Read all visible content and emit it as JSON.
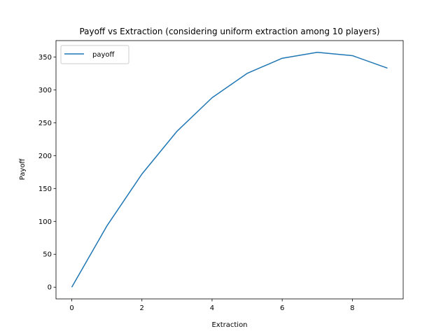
{
  "chart_data": {
    "type": "line",
    "title": "Payoff vs Extraction (considering uniform extraction among 10 players)",
    "xlabel": "Extraction",
    "ylabel": "Payoff",
    "x": [
      0,
      1,
      2,
      3,
      4,
      5,
      6,
      7,
      8,
      9
    ],
    "series": [
      {
        "name": "payoff",
        "color": "#1f77b4",
        "values": [
          0,
          93,
          172,
          237,
          288,
          325,
          348,
          357,
          352,
          333
        ]
      }
    ],
    "xlim": [
      -0.45,
      9.45
    ],
    "ylim": [
      -17.85,
      374.85
    ],
    "xticks": [
      0,
      2,
      4,
      6,
      8
    ],
    "yticks": [
      0,
      50,
      100,
      150,
      200,
      250,
      300,
      350
    ],
    "grid": false,
    "legend": "upper-left"
  }
}
